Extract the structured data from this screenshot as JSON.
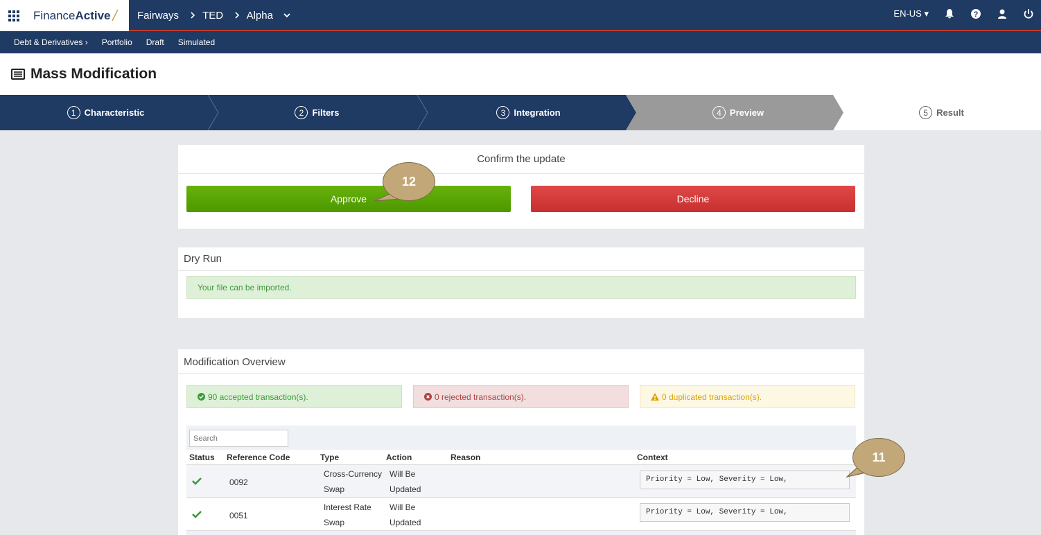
{
  "topbar": {
    "brand_plain": "Finance",
    "brand_bold": "Active",
    "breadcrumb": [
      "Fairways",
      "TED",
      "Alpha"
    ],
    "locale": "EN-US"
  },
  "subnav": {
    "section": "Debt & Derivatives",
    "items": [
      "Portfolio",
      "Draft",
      "Simulated"
    ]
  },
  "page": {
    "title": "Mass Modification"
  },
  "stepper": [
    {
      "num": "1",
      "label": "Characteristic",
      "state": "done"
    },
    {
      "num": "2",
      "label": "Filters",
      "state": "done"
    },
    {
      "num": "3",
      "label": "Integration",
      "state": "done"
    },
    {
      "num": "4",
      "label": "Preview",
      "state": "active"
    },
    {
      "num": "5",
      "label": "Result",
      "state": "todo"
    }
  ],
  "confirm": {
    "heading": "Confirm the update",
    "approve": "Approve",
    "decline": "Decline"
  },
  "dryrun": {
    "heading": "Dry Run",
    "message": "Your file can be imported."
  },
  "overview": {
    "heading": "Modification Overview",
    "accepted": "90 accepted transaction(s).",
    "rejected": "0 rejected transaction(s).",
    "duplicated": "0 duplicated transaction(s).",
    "search_placeholder": "Search",
    "columns": [
      "Status",
      "Reference Code",
      "Type",
      "Action",
      "Reason",
      "Context"
    ],
    "rows": [
      {
        "ref": "0092",
        "type1": "Cross-Currency",
        "type2": "Swap",
        "action1": "Will Be",
        "action2": "Updated",
        "reason": "",
        "context": "Priority = Low, Severity = Low,"
      },
      {
        "ref": "0051",
        "type1": "Interest Rate",
        "type2": "Swap",
        "action1": "Will Be",
        "action2": "Updated",
        "reason": "",
        "context": "Priority = Low, Severity = Low,"
      }
    ]
  },
  "callouts": {
    "approve_callout": "12",
    "context_callout": "11"
  },
  "colors": {
    "navy": "#1f3a63",
    "approve": "#5aa000",
    "decline": "#d43a3a",
    "step_active": "#9a9a9a"
  }
}
